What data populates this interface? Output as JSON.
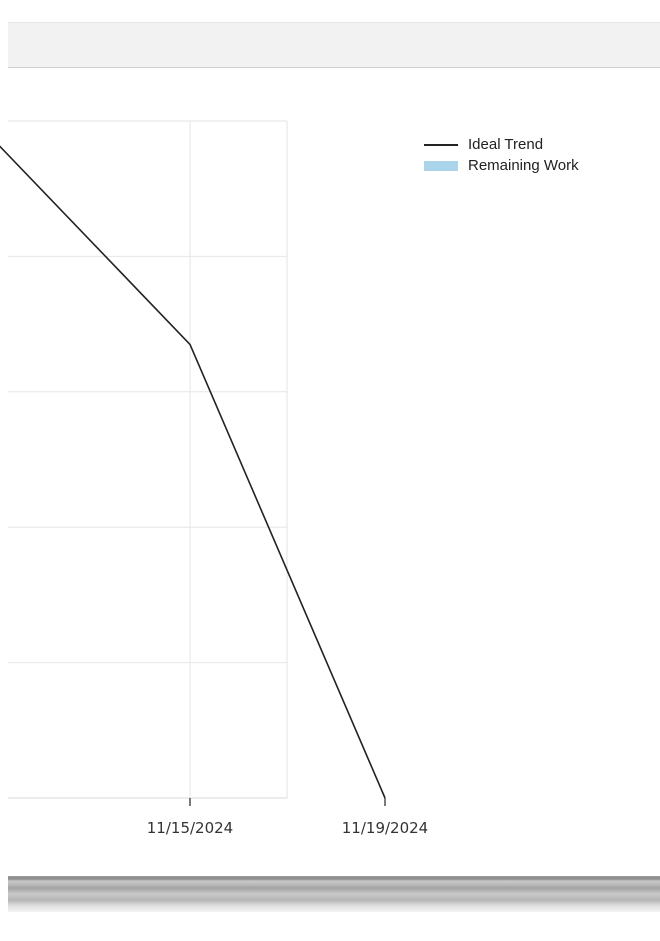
{
  "toolbar": {},
  "chart_data": {
    "type": "line",
    "title": "",
    "xlabel": "",
    "ylabel": "",
    "x_tick_labels": [
      "11/15/2024",
      "11/19/2024"
    ],
    "series": [
      {
        "name": "Ideal Trend",
        "color": "#222222",
        "points": [
          {
            "x": "11/11/2024",
            "y": 0.97
          },
          {
            "x": "11/15/2024",
            "y": 0.67
          },
          {
            "x": "11/19/2024",
            "y": 0
          }
        ]
      },
      {
        "name": "Remaining Work",
        "color": "#a9d4ea",
        "points": []
      }
    ],
    "grid": true,
    "legend": "top-right"
  }
}
